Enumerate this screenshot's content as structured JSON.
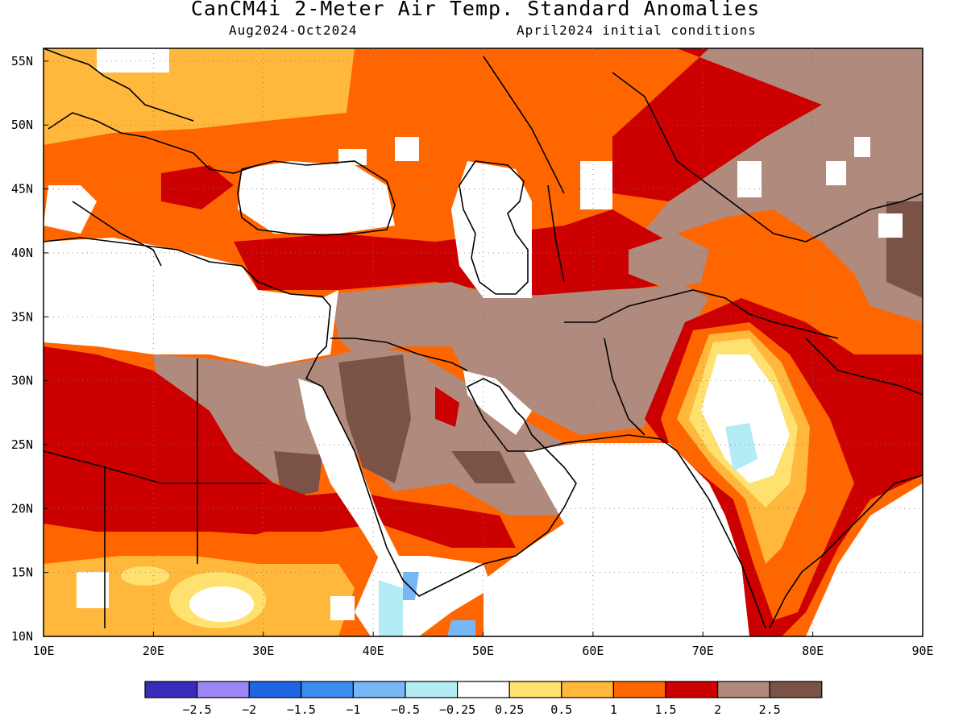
{
  "header": {
    "title": "CanCM4i 2-Meter Air Temp. Standard Anomalies",
    "period": "Aug2024-Oct2024",
    "init": "April2024 initial conditions"
  },
  "map": {
    "lon_labels": [
      "10E",
      "20E",
      "30E",
      "40E",
      "50E",
      "60E",
      "70E",
      "80E",
      "90E"
    ],
    "lat_labels": [
      "55N",
      "50N",
      "45N",
      "40N",
      "35N",
      "30N",
      "25N",
      "20N",
      "15N",
      "10N"
    ],
    "extent": {
      "lon_min": 10,
      "lon_max": 90,
      "lat_min": 10,
      "lat_max": 56
    },
    "grid": true
  },
  "colorbar": {
    "colors": [
      "#3a2cb8",
      "#9d87f5",
      "#1f64e0",
      "#3c8cf0",
      "#78b7f5",
      "#b3ecf5",
      "#ffffff",
      "#ffe170",
      "#ffb73c",
      "#ff6600",
      "#cc0000",
      "#b08a7c",
      "#7a5246"
    ],
    "labels": [
      "−2.5",
      "−2",
      "−1.5",
      "−1",
      "−0.5",
      "−0.25",
      "0.25",
      "0.5",
      "1",
      "1.5",
      "2",
      "2.5"
    ]
  }
}
